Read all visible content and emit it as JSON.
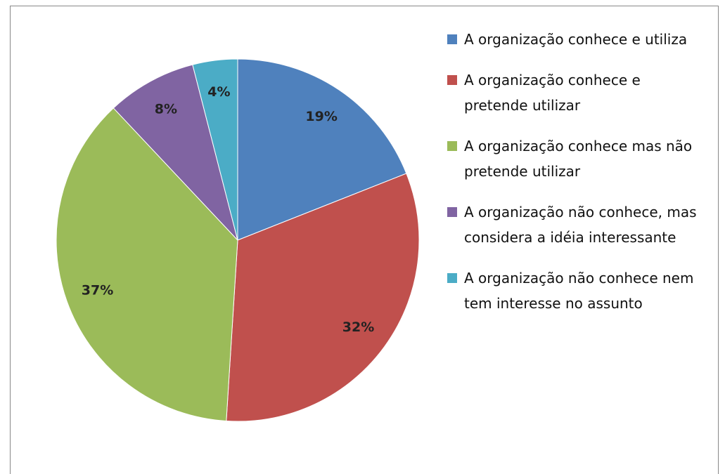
{
  "chart_data": {
    "type": "pie",
    "categories": [
      "A organização conhece e utiliza",
      "A organização conhece e pretende utilizar",
      "A organização conhece mas não pretende utilizar",
      "A organização não conhece, mas considera a idéia interessante",
      "A organização não conhece nem tem interesse no assunto"
    ],
    "values": [
      19,
      32,
      37,
      8,
      4
    ],
    "value_labels": [
      "19%",
      "32%",
      "37%",
      "8%",
      "4%"
    ],
    "colors": [
      "#4f81bd",
      "#c0504d",
      "#9bbb59",
      "#8064a2",
      "#4bacc6"
    ],
    "legend": "right"
  }
}
